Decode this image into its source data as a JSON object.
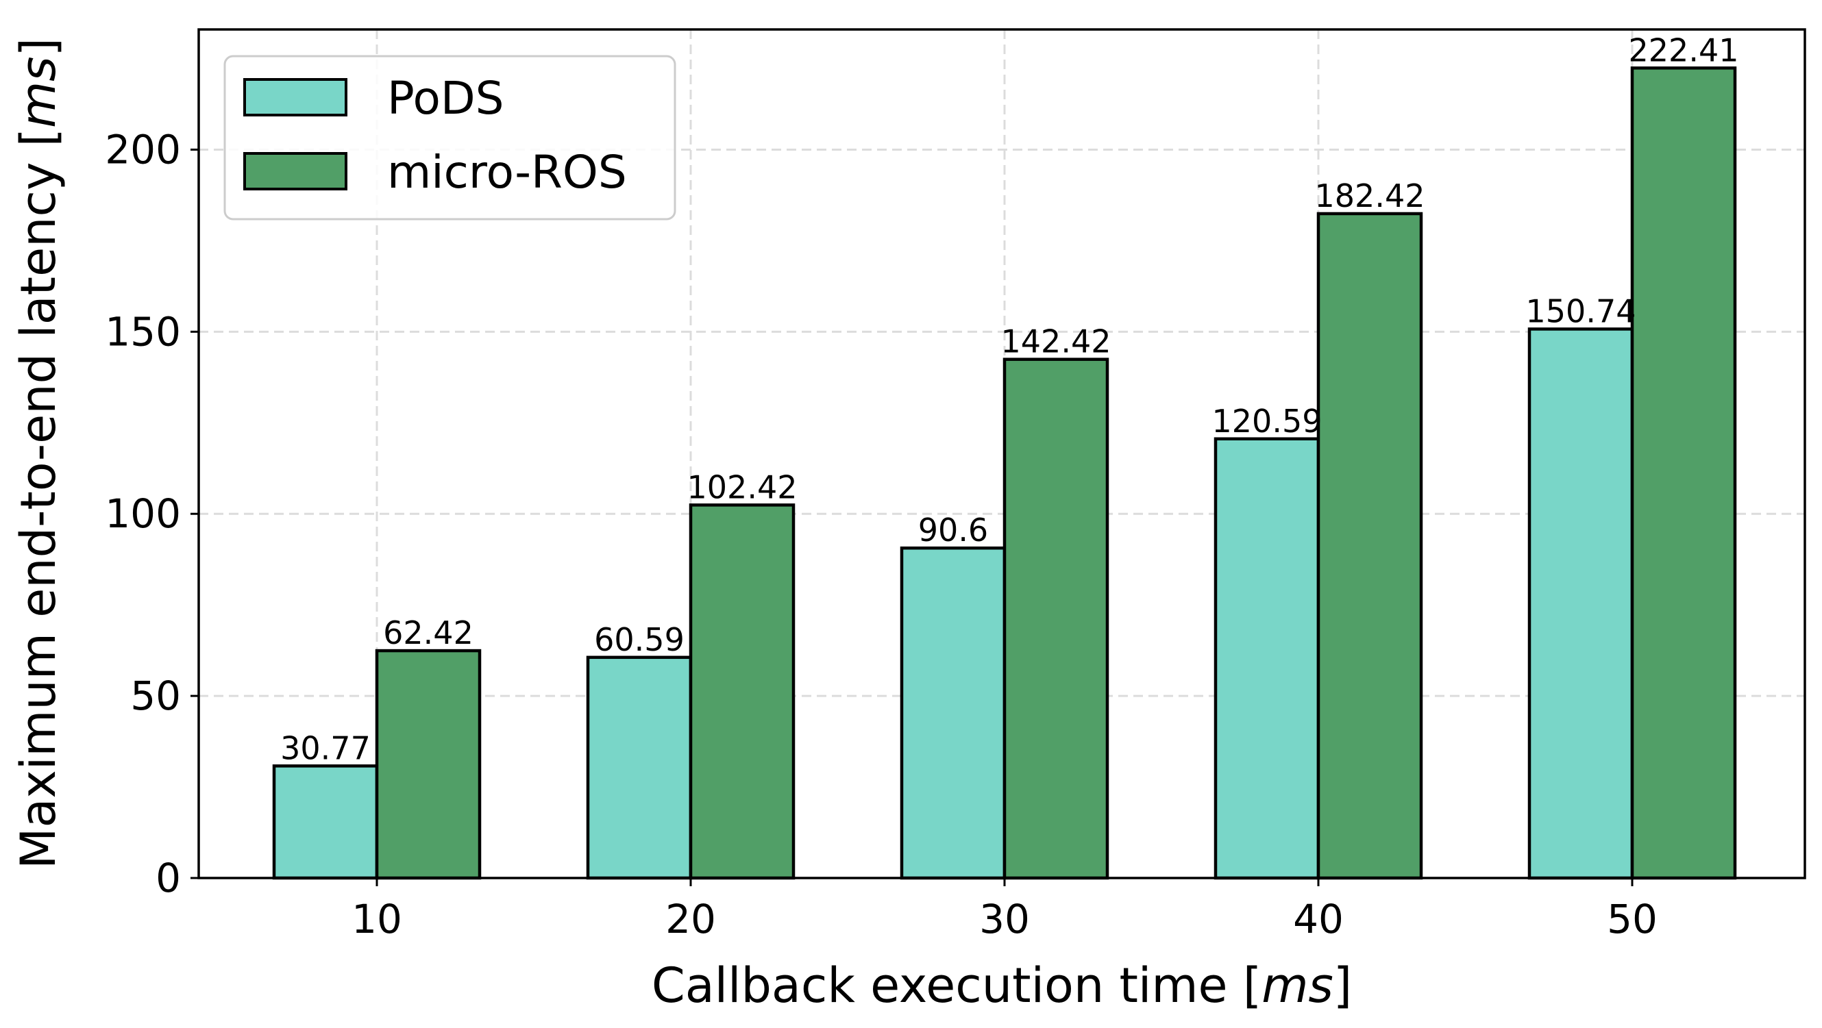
{
  "chart_data": {
    "type": "bar",
    "categories": [
      "10",
      "20",
      "30",
      "40",
      "50"
    ],
    "series": [
      {
        "name": "PoDS",
        "values": [
          30.77,
          60.59,
          90.6,
          120.59,
          150.74
        ],
        "labels": [
          "30.77",
          "60.59",
          "90.6",
          "120.59",
          "150.74"
        ],
        "color": "#79d6c8"
      },
      {
        "name": "micro-ROS",
        "values": [
          62.42,
          102.42,
          142.42,
          182.42,
          222.41
        ],
        "labels": [
          "62.42",
          "102.42",
          "142.42",
          "182.42",
          "222.41"
        ],
        "color": "#519f67"
      }
    ],
    "xlabel": {
      "prefix": "Callback execution time [",
      "unit": "ms",
      "suffix": "]"
    },
    "ylabel": {
      "prefix": "Maximum end-to-end latency [",
      "unit": "ms",
      "suffix": "]"
    },
    "ylim": [
      0,
      233
    ],
    "yticks": [
      0,
      50,
      100,
      150,
      200
    ],
    "ytick_labels": [
      "0",
      "50",
      "100",
      "150",
      "200"
    ],
    "grid": true,
    "legend_position": "top-left"
  },
  "colors": {
    "edge": "#000000",
    "grid": "#dcdcdc",
    "legend_border": "#cccccc"
  }
}
